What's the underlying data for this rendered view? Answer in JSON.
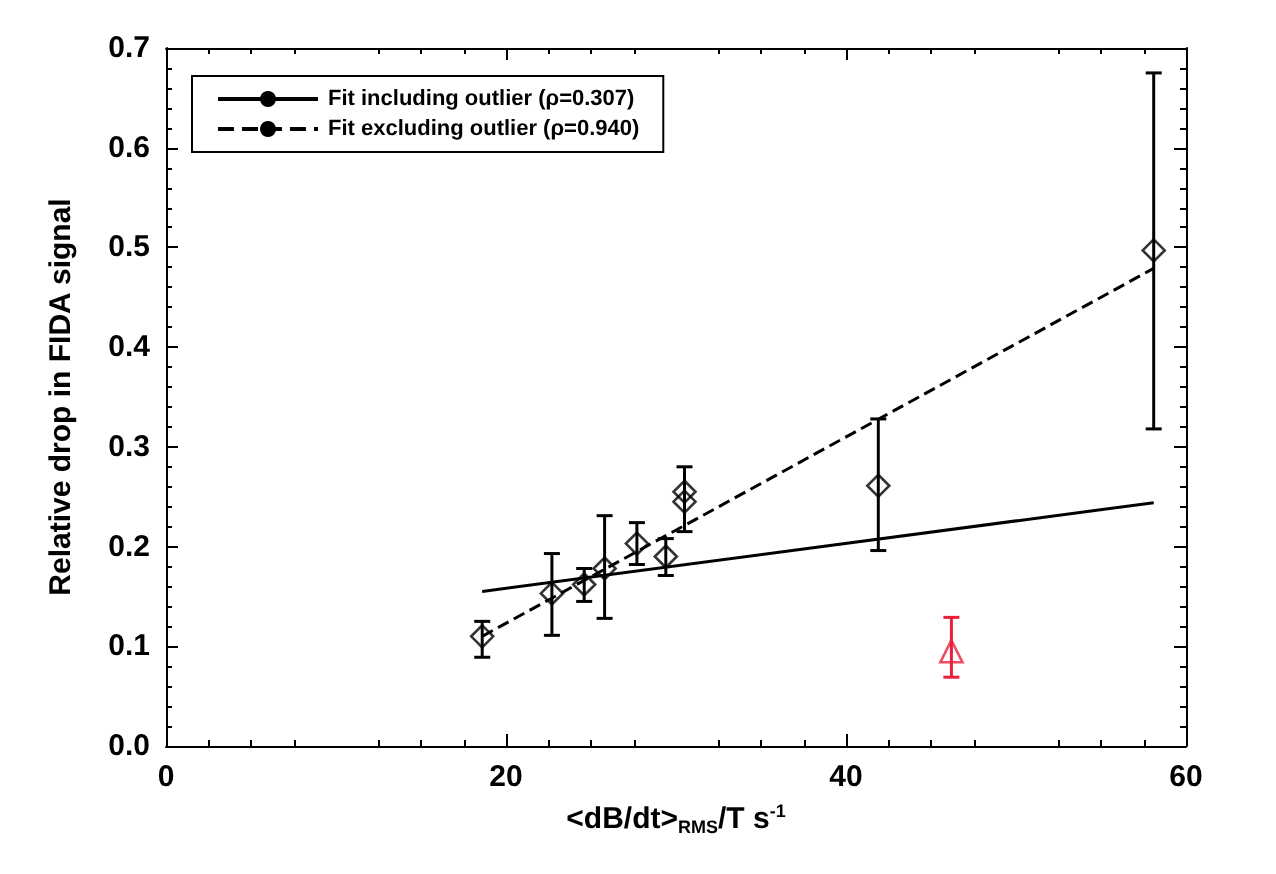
{
  "chart_data": {
    "type": "scatter",
    "xlabel": "<dB/dt>$_{RMS}$/T s$^{-1}$",
    "ylabel": "Relative drop in FIDA signal",
    "xlim": [
      0,
      60
    ],
    "xticks": [
      0,
      20,
      40,
      60
    ],
    "ylim": [
      0,
      0.7
    ],
    "yticks": [
      {
        "value": 0,
        "label": "0.0"
      },
      {
        "value": 0.1,
        "label": "0.1"
      },
      {
        "value": 0.2,
        "label": "0.2"
      },
      {
        "value": 0.3,
        "label": "0.3"
      },
      {
        "value": 0.4,
        "label": "0.4"
      },
      {
        "value": 0.5,
        "label": "0.5"
      },
      {
        "value": 0.6,
        "label": "0.6"
      },
      {
        "value": 0.7,
        "label": "0.7"
      }
    ],
    "grid": false,
    "legend": "top left",
    "series": [
      {
        "color": "#000000",
        "marker": "diamond",
        "x": [
          18.6,
          22.7,
          24.6,
          25.8,
          27.7,
          29.4,
          30.5,
          30.5,
          41.9,
          58.1
        ],
        "values": [
          0.11,
          0.153,
          0.162,
          0.178,
          0.203,
          0.19,
          0.245,
          0.255,
          0.261,
          0.497
        ],
        "errors": [
          [
            0.089,
            0.125
          ],
          [
            0.111,
            0.193
          ],
          [
            0.145,
            0.178
          ],
          [
            0.128,
            0.231
          ],
          [
            0.182,
            0.224
          ],
          [
            0.171,
            0.208
          ],
          [
            0.215,
            0.28
          ],
          null,
          [
            0.196,
            0.328
          ],
          [
            0.318,
            0.675
          ]
        ]
      },
      {
        "color": "#e8203a",
        "marker": "triangle",
        "x": [
          46.2
        ],
        "values": [
          0.095
        ],
        "errors": [
          [
            0.069,
            0.129
          ]
        ]
      },
      {
        "type": "line",
        "name": "Fit including outlier (ρ=0.307)",
        "color": "#000000",
        "line_style": "solid",
        "x": [
          18.6,
          58.1
        ],
        "values": [
          0.155,
          0.244
        ]
      },
      {
        "type": "line",
        "name": "Fit excluding outlier (ρ=0.940)",
        "color": "#000000",
        "line_style": "dashed",
        "x": [
          18.6,
          58.1
        ],
        "values": [
          0.11,
          0.479
        ]
      }
    ]
  }
}
